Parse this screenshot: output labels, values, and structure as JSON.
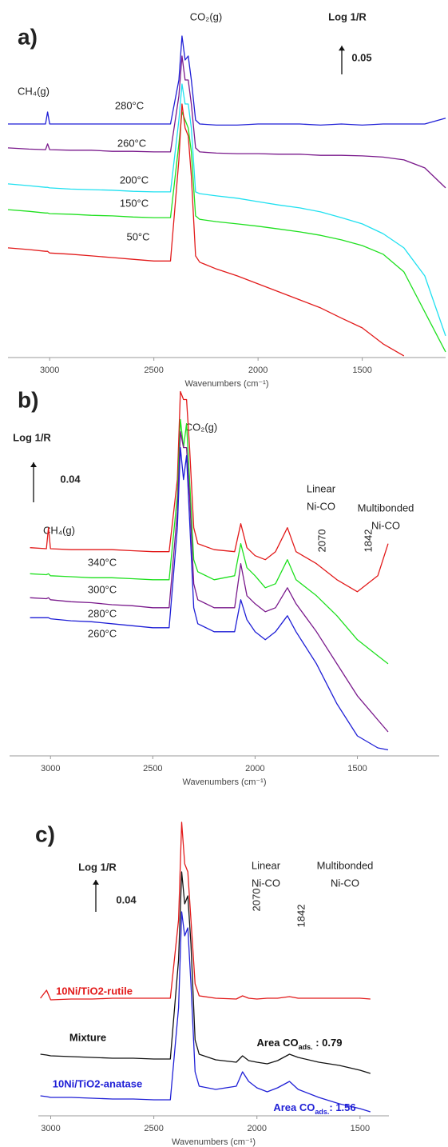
{
  "chart_data": [
    {
      "type": "line",
      "panel_label": "a)",
      "ylabel": "Log 1/R",
      "scale": 0.05,
      "xlabel": "Wavenumbers (cm⁻¹)",
      "xlim": [
        3200,
        1100
      ],
      "xticks": [
        3000,
        2500,
        2000,
        1500
      ],
      "ylim": [
        0,
        0.612
      ],
      "annotations": [
        {
          "text": "CO₂(g)"
        },
        {
          "text": "CH₄(g)"
        }
      ],
      "x": [
        3200,
        3100,
        3020,
        3010,
        3000,
        2900,
        2800,
        2700,
        2600,
        2500,
        2420,
        2380,
        2365,
        2350,
        2335,
        2320,
        2300,
        2280,
        2200,
        2100,
        2000,
        1900,
        1800,
        1700,
        1600,
        1500,
        1400,
        1300,
        1200,
        1100
      ],
      "series": [
        {
          "name": "280°C",
          "color": "#1f1fd6",
          "values": [
            0.409,
            0.409,
            0.409,
            0.43,
            0.409,
            0.409,
            0.409,
            0.409,
            0.409,
            0.409,
            0.409,
            0.486,
            0.563,
            0.521,
            0.528,
            0.486,
            0.416,
            0.409,
            0.407,
            0.407,
            0.409,
            0.409,
            0.409,
            0.407,
            0.409,
            0.407,
            0.409,
            0.409,
            0.409,
            0.419
          ]
        },
        {
          "name": "260°C",
          "color": "#7a1a8c",
          "values": [
            0.367,
            0.365,
            0.364,
            0.374,
            0.364,
            0.363,
            0.363,
            0.361,
            0.361,
            0.36,
            0.36,
            0.458,
            0.528,
            0.486,
            0.486,
            0.444,
            0.367,
            0.36,
            0.358,
            0.357,
            0.357,
            0.356,
            0.356,
            0.354,
            0.354,
            0.353,
            0.351,
            0.346,
            0.332,
            0.297
          ]
        },
        {
          "name": "200°C",
          "color": "#1fe0f0",
          "values": [
            0.304,
            0.301,
            0.298,
            0.298,
            0.297,
            0.295,
            0.294,
            0.293,
            0.291,
            0.29,
            0.29,
            0.416,
            0.479,
            0.444,
            0.444,
            0.402,
            0.29,
            0.287,
            0.283,
            0.279,
            0.273,
            0.267,
            0.262,
            0.255,
            0.245,
            0.234,
            0.217,
            0.192,
            0.143,
            0.038
          ]
        },
        {
          "name": "150°C",
          "color": "#1fe01f",
          "values": [
            0.259,
            0.256,
            0.253,
            0.253,
            0.252,
            0.251,
            0.249,
            0.248,
            0.246,
            0.245,
            0.245,
            0.374,
            0.43,
            0.416,
            0.402,
            0.36,
            0.248,
            0.242,
            0.238,
            0.234,
            0.23,
            0.225,
            0.22,
            0.214,
            0.206,
            0.196,
            0.181,
            0.15,
            0.08,
            0.01
          ]
        },
        {
          "name": "50°C",
          "color": "#e21a1a",
          "values": [
            0.192,
            0.189,
            0.186,
            0.186,
            0.183,
            0.181,
            0.178,
            0.175,
            0.172,
            0.169,
            0.169,
            0.346,
            0.444,
            0.402,
            0.388,
            0.318,
            0.178,
            0.167,
            0.155,
            0.143,
            0.129,
            0.115,
            0.101,
            0.087,
            0.069,
            0.052,
            0.024,
            0.003,
            null,
            null
          ]
        }
      ]
    },
    {
      "type": "line",
      "panel_label": "b)",
      "ylabel": "Log 1/R",
      "scale": 0.04,
      "xlabel": "Wavenumbers (cm⁻¹)",
      "xlim": [
        3200,
        1100
      ],
      "xticks": [
        3000,
        2500,
        2000,
        1500
      ],
      "ylim": [
        0,
        0.37
      ],
      "annotations": [
        {
          "text": "CO₂(g)"
        },
        {
          "text": "CH₄(g)"
        },
        {
          "lines": [
            "Linear",
            "Ni-CO"
          ]
        },
        {
          "lines": [
            "Multibonded",
            "Ni-CO"
          ]
        },
        {
          "text": "2070"
        },
        {
          "text": "1842"
        }
      ],
      "x": [
        3100,
        3020,
        3010,
        3000,
        2900,
        2800,
        2700,
        2600,
        2500,
        2420,
        2380,
        2365,
        2350,
        2335,
        2320,
        2300,
        2280,
        2200,
        2100,
        2070,
        2040,
        2000,
        1950,
        1900,
        1842,
        1800,
        1700,
        1600,
        1500,
        1400,
        1350
      ],
      "series": [
        {
          "name": "340°C",
          "color": "#e21a1a",
          "values": [
            0.208,
            0.207,
            0.228,
            0.207,
            0.206,
            0.206,
            0.206,
            0.205,
            0.204,
            0.204,
            0.276,
            0.364,
            0.356,
            0.356,
            0.308,
            0.228,
            0.212,
            0.206,
            0.204,
            0.232,
            0.208,
            0.2,
            0.196,
            0.204,
            0.228,
            0.204,
            0.192,
            0.176,
            0.164,
            0.18,
            0.212
          ]
        },
        {
          "name": "300°C",
          "color": "#1fe01f",
          "values": [
            0.182,
            0.181,
            0.182,
            0.18,
            0.179,
            0.178,
            0.178,
            0.177,
            0.176,
            0.176,
            0.26,
            0.336,
            0.308,
            0.332,
            0.276,
            0.196,
            0.184,
            0.176,
            0.18,
            0.212,
            0.188,
            0.18,
            0.168,
            0.172,
            0.196,
            0.176,
            0.16,
            0.14,
            0.116,
            0.1,
            0.092
          ]
        },
        {
          "name": "280°C",
          "color": "#7a1a8c",
          "values": [
            0.158,
            0.157,
            0.158,
            0.156,
            0.154,
            0.153,
            0.151,
            0.15,
            0.148,
            0.148,
            0.244,
            0.324,
            0.308,
            0.308,
            0.26,
            0.172,
            0.156,
            0.148,
            0.148,
            0.192,
            0.16,
            0.152,
            0.144,
            0.148,
            0.168,
            0.152,
            0.124,
            0.092,
            0.06,
            0.036,
            0.024
          ]
        },
        {
          "name": "260°C",
          "color": "#1f1fd6",
          "values": [
            0.138,
            0.138,
            0.138,
            0.137,
            0.135,
            0.134,
            0.132,
            0.13,
            0.128,
            0.128,
            0.228,
            0.308,
            0.276,
            0.3,
            0.236,
            0.148,
            0.132,
            0.124,
            0.124,
            0.156,
            0.136,
            0.124,
            0.116,
            0.124,
            0.14,
            0.124,
            0.092,
            0.052,
            0.02,
            0.008,
            0.006
          ]
        }
      ]
    },
    {
      "type": "line",
      "panel_label": "c)",
      "ylabel": "Log 1/R",
      "scale": 0.04,
      "xlabel": "Wavenumbers (cm⁻¹)",
      "xlim": [
        3060,
        1360
      ],
      "xticks": [
        3000,
        2500,
        2000,
        1500
      ],
      "ylim": [
        0,
        0.375
      ],
      "annotations": [
        {
          "lines": [
            "Linear",
            "Ni-CO"
          ]
        },
        {
          "lines": [
            "Multibonded",
            "Ni-CO"
          ]
        },
        {
          "text": "2070"
        },
        {
          "text": "1842"
        },
        {
          "parts": [
            "Area CO",
            "ads.",
            " : 0.79"
          ]
        },
        {
          "parts": [
            "Area CO",
            "ads.",
            ": 1.56"
          ]
        }
      ],
      "x": [
        3050,
        3020,
        3000,
        2900,
        2800,
        2700,
        2600,
        2500,
        2420,
        2380,
        2365,
        2350,
        2335,
        2320,
        2300,
        2280,
        2200,
        2100,
        2070,
        2040,
        2000,
        1950,
        1900,
        1842,
        1800,
        1700,
        1600,
        1500,
        1450
      ],
      "series": [
        {
          "name": "10Ni/TiO2-rutile",
          "color": "#e21a1a",
          "values": [
            0.147,
            0.157,
            0.145,
            0.146,
            0.146,
            0.147,
            0.147,
            0.147,
            0.147,
            0.245,
            0.367,
            0.315,
            0.305,
            0.245,
            0.165,
            0.15,
            0.147,
            0.146,
            0.15,
            0.147,
            0.146,
            0.147,
            0.147,
            0.149,
            0.147,
            0.147,
            0.147,
            0.147,
            0.146
          ]
        },
        {
          "name": "Mixture",
          "color": "#111111",
          "values": [
            0.077,
            0.076,
            0.075,
            0.074,
            0.073,
            0.072,
            0.072,
            0.071,
            0.071,
            0.195,
            0.305,
            0.265,
            0.275,
            0.215,
            0.095,
            0.077,
            0.07,
            0.067,
            0.075,
            0.069,
            0.067,
            0.065,
            0.069,
            0.077,
            0.073,
            0.067,
            0.063,
            0.057,
            0.053
          ]
        },
        {
          "name": "10Ni/TiO2-anatase",
          "color": "#1f1fd6",
          "values": [
            0.025,
            0.024,
            0.023,
            0.023,
            0.022,
            0.021,
            0.021,
            0.02,
            0.02,
            0.135,
            0.255,
            0.225,
            0.235,
            0.165,
            0.055,
            0.037,
            0.033,
            0.037,
            0.055,
            0.043,
            0.035,
            0.03,
            0.035,
            0.043,
            0.033,
            0.023,
            0.015,
            0.009,
            0.005
          ]
        }
      ]
    }
  ]
}
